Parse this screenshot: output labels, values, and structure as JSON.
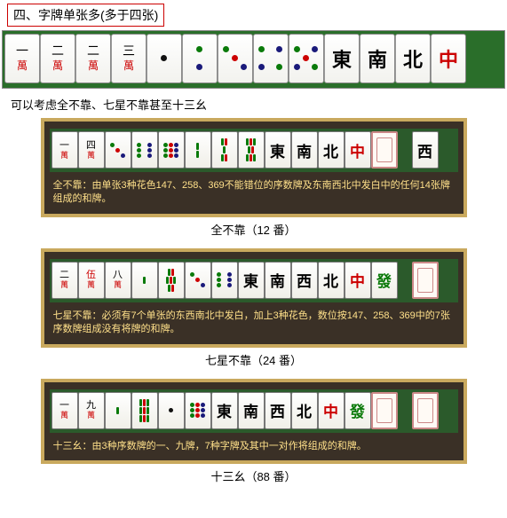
{
  "title": "四、字牌单张多(多于四张)",
  "subtitle": "可以考虑全不靠、七星不靠甚至十三幺",
  "top_row": {
    "tiles": [
      {
        "kind": "man",
        "top": "一",
        "bot": "萬",
        "topColor": "black",
        "botColor": "red"
      },
      {
        "kind": "man",
        "top": "二",
        "bot": "萬",
        "topColor": "black",
        "botColor": "red"
      },
      {
        "kind": "man",
        "top": "二",
        "bot": "萬",
        "topColor": "black",
        "botColor": "red"
      },
      {
        "kind": "man",
        "top": "三",
        "bot": "萬",
        "topColor": "black",
        "botColor": "red"
      },
      {
        "kind": "dot",
        "pattern": [
          "d0",
          "d0",
          "d0",
          "d0",
          "dk",
          "d0",
          "d0",
          "d0",
          "d0"
        ]
      },
      {
        "kind": "dot",
        "pattern": [
          "d0",
          "dg",
          "d0",
          "d0",
          "d0",
          "d0",
          "d0",
          "db",
          "d0"
        ]
      },
      {
        "kind": "dot",
        "pattern": [
          "dg",
          "d0",
          "d0",
          "d0",
          "dr",
          "d0",
          "d0",
          "d0",
          "db"
        ]
      },
      {
        "kind": "dot",
        "pattern": [
          "dg",
          "d0",
          "db",
          "d0",
          "d0",
          "d0",
          "db",
          "d0",
          "dg"
        ]
      },
      {
        "kind": "dot",
        "pattern": [
          "dg",
          "d0",
          "db",
          "d0",
          "dr",
          "d0",
          "db",
          "d0",
          "dg"
        ]
      },
      {
        "kind": "honor",
        "char": "東",
        "color": "black"
      },
      {
        "kind": "honor",
        "char": "南",
        "color": "black"
      },
      {
        "kind": "honor",
        "char": "北",
        "color": "black"
      },
      {
        "kind": "honor",
        "char": "中",
        "color": "red"
      }
    ]
  },
  "examples": [
    {
      "tiles": [
        {
          "kind": "man",
          "top": "一",
          "bot": "萬",
          "topColor": "black",
          "botColor": "red"
        },
        {
          "kind": "man",
          "top": "四",
          "bot": "萬",
          "topColor": "black",
          "botColor": "red"
        },
        {
          "kind": "dot",
          "pattern": [
            "dg",
            "d0",
            "d0",
            "d0",
            "dr",
            "d0",
            "d0",
            "d0",
            "db"
          ]
        },
        {
          "kind": "dot",
          "pattern": [
            "dg",
            "d0",
            "db",
            "dg",
            "d0",
            "db",
            "dg",
            "d0",
            "db"
          ]
        },
        {
          "kind": "dot",
          "pattern": [
            "dg",
            "dr",
            "db",
            "dg",
            "dr",
            "db",
            "dg",
            "dr",
            "db"
          ]
        },
        {
          "kind": "bam",
          "rows": [
            [
              1
            ],
            [
              1
            ]
          ]
        },
        {
          "kind": "bam",
          "rows": [
            [
              1,
              1
            ],
            [
              1
            ],
            [
              1,
              1
            ]
          ]
        },
        {
          "kind": "bam",
          "rows": [
            [
              1,
              1,
              1
            ],
            [
              1,
              1
            ],
            [
              1,
              1,
              1
            ]
          ]
        },
        {
          "kind": "honor",
          "char": "東",
          "color": "black"
        },
        {
          "kind": "honor",
          "char": "南",
          "color": "black"
        },
        {
          "kind": "honor",
          "char": "北",
          "color": "black"
        },
        {
          "kind": "honor",
          "char": "中",
          "color": "red"
        },
        {
          "kind": "blank"
        },
        {
          "kind": "honor",
          "char": "西",
          "color": "black",
          "gap": true
        }
      ],
      "desc": "全不靠：由单张3种花色147、258、369不能错位的序数牌及东南西北中发白中的任何14张牌组成的和牌。",
      "caption": "全不靠（12 番）"
    },
    {
      "tiles": [
        {
          "kind": "man",
          "top": "二",
          "bot": "萬",
          "topColor": "black",
          "botColor": "red"
        },
        {
          "kind": "man",
          "top": "伍",
          "bot": "萬",
          "topColor": "red",
          "botColor": "red"
        },
        {
          "kind": "man",
          "top": "八",
          "bot": "萬",
          "topColor": "black",
          "botColor": "red"
        },
        {
          "kind": "bam",
          "rows": [
            [
              1
            ]
          ]
        },
        {
          "kind": "bam",
          "rows": [
            [
              1,
              1
            ],
            [
              1,
              1,
              1
            ],
            [
              1,
              1
            ]
          ]
        },
        {
          "kind": "dot",
          "pattern": [
            "dg",
            "d0",
            "d0",
            "d0",
            "dr",
            "d0",
            "d0",
            "d0",
            "db"
          ]
        },
        {
          "kind": "dot",
          "pattern": [
            "dg",
            "d0",
            "db",
            "dg",
            "d0",
            "db",
            "dg",
            "d0",
            "db"
          ]
        },
        {
          "kind": "honor",
          "char": "東",
          "color": "black"
        },
        {
          "kind": "honor",
          "char": "南",
          "color": "black"
        },
        {
          "kind": "honor",
          "char": "西",
          "color": "black"
        },
        {
          "kind": "honor",
          "char": "北",
          "color": "black"
        },
        {
          "kind": "honor",
          "char": "中",
          "color": "red"
        },
        {
          "kind": "honor",
          "char": "發",
          "color": "green"
        },
        {
          "kind": "blank",
          "gap": true
        }
      ],
      "desc": "七星不靠：必须有7个单张的东西南北中发白，加上3种花色，数位按147、258、369中的7张序数牌组成没有将牌的和牌。",
      "caption": "七星不靠（24 番）"
    },
    {
      "tiles": [
        {
          "kind": "man",
          "top": "一",
          "bot": "萬",
          "topColor": "black",
          "botColor": "red"
        },
        {
          "kind": "man",
          "top": "九",
          "bot": "萬",
          "topColor": "black",
          "botColor": "red"
        },
        {
          "kind": "bam",
          "rows": [
            [
              1
            ]
          ]
        },
        {
          "kind": "bam",
          "rows": [
            [
              1,
              1,
              1
            ],
            [
              1,
              1,
              1
            ],
            [
              1,
              1,
              1
            ]
          ]
        },
        {
          "kind": "dot",
          "pattern": [
            "d0",
            "d0",
            "d0",
            "d0",
            "dk",
            "d0",
            "d0",
            "d0",
            "d0"
          ]
        },
        {
          "kind": "dot",
          "pattern": [
            "dg",
            "dr",
            "db",
            "dg",
            "dr",
            "db",
            "dg",
            "dr",
            "db"
          ]
        },
        {
          "kind": "honor",
          "char": "東",
          "color": "black"
        },
        {
          "kind": "honor",
          "char": "南",
          "color": "black"
        },
        {
          "kind": "honor",
          "char": "西",
          "color": "black"
        },
        {
          "kind": "honor",
          "char": "北",
          "color": "black"
        },
        {
          "kind": "honor",
          "char": "中",
          "color": "red"
        },
        {
          "kind": "honor",
          "char": "發",
          "color": "green"
        },
        {
          "kind": "blank"
        },
        {
          "kind": "blank",
          "gap": true
        }
      ],
      "desc": "十三幺：由3种序数牌的一、九牌，7种字牌及其中一对作将组成的和牌。",
      "caption": "十三幺（88 番）"
    }
  ]
}
